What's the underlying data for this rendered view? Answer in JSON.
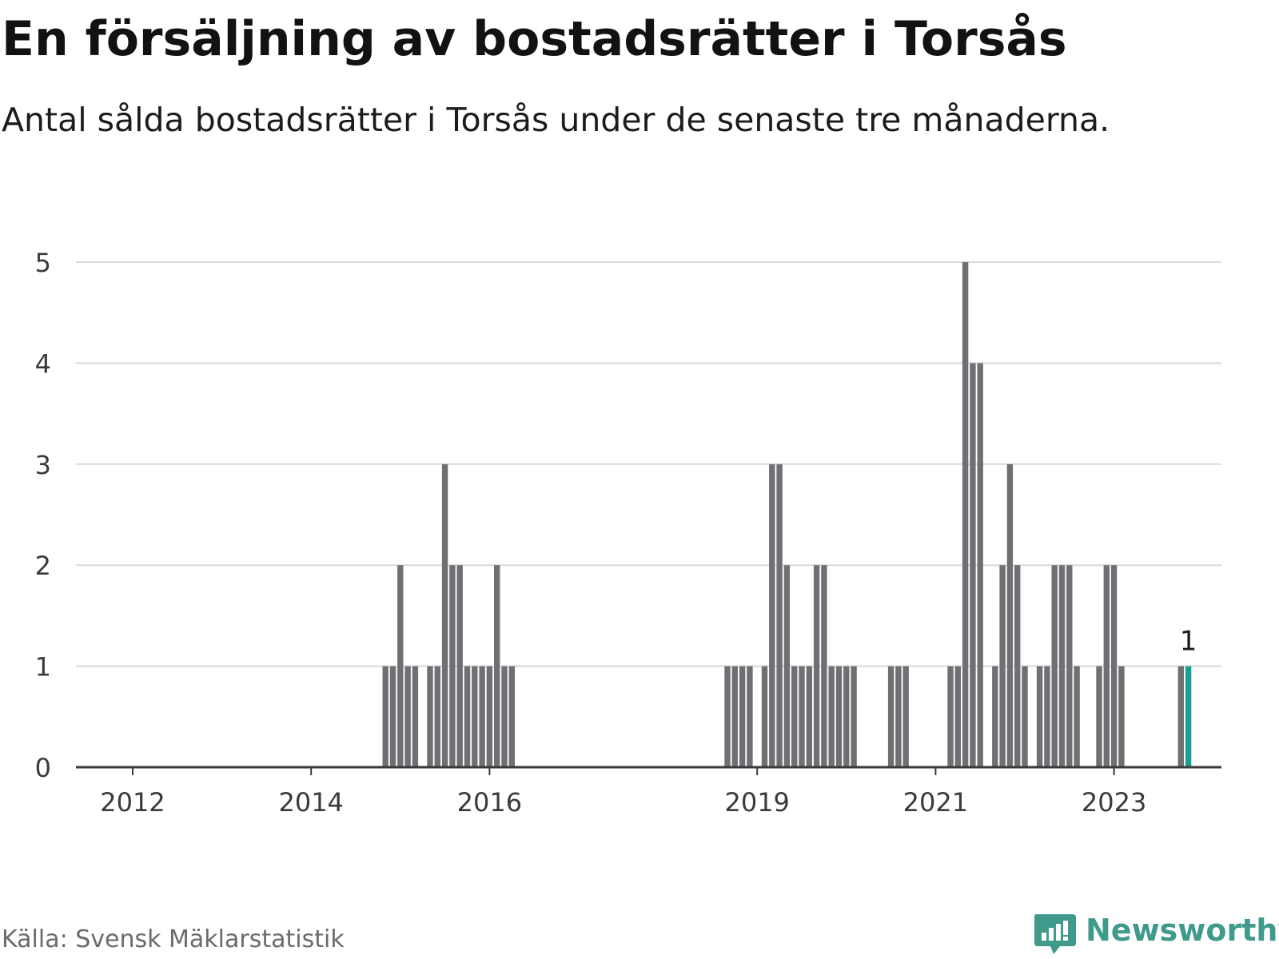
{
  "header": {
    "title": "En försäljning av bostadsrätter i Torsås",
    "subtitle": "Antal sålda bostadsrätter i Torsås under de senaste tre månaderna."
  },
  "footer": {
    "source": "Källa: Svensk Mäklarstatistik",
    "brand": "Newsworthy"
  },
  "colors": {
    "bar": "#707074",
    "highlight": "#16a091",
    "grid": "#d9d9d9",
    "axis": "#3a3a3a",
    "brand": "#3f9a8c"
  },
  "chart_data": {
    "type": "bar",
    "title": "En försäljning av bostadsrätter i Torsås",
    "ylim": [
      0,
      5
    ],
    "yticks": [
      0,
      1,
      2,
      3,
      4,
      5
    ],
    "xticks": [
      {
        "label": "2012",
        "index": 0
      },
      {
        "label": "2014",
        "index": 24
      },
      {
        "label": "2016",
        "index": 48
      },
      {
        "label": "2019",
        "index": 84
      },
      {
        "label": "2021",
        "index": 108
      },
      {
        "label": "2023",
        "index": 132
      }
    ],
    "month_count": 143,
    "highlight_index": 142,
    "highlight_label": "1",
    "values": [
      0,
      0,
      0,
      0,
      0,
      0,
      0,
      0,
      0,
      0,
      0,
      0,
      0,
      0,
      0,
      0,
      0,
      0,
      0,
      0,
      0,
      0,
      0,
      0,
      0,
      0,
      0,
      0,
      0,
      0,
      0,
      0,
      0,
      0,
      1,
      1,
      2,
      1,
      1,
      0,
      1,
      1,
      3,
      2,
      2,
      1,
      1,
      1,
      1,
      2,
      1,
      1,
      0,
      0,
      0,
      0,
      0,
      0,
      0,
      0,
      0,
      0,
      0,
      0,
      0,
      0,
      0,
      0,
      0,
      0,
      0,
      0,
      0,
      0,
      0,
      0,
      0,
      0,
      0,
      0,
      1,
      1,
      1,
      1,
      0,
      1,
      3,
      3,
      2,
      1,
      1,
      1,
      2,
      2,
      1,
      1,
      1,
      1,
      0,
      0,
      0,
      0,
      1,
      1,
      1,
      0,
      0,
      0,
      0,
      0,
      1,
      1,
      5,
      4,
      4,
      0,
      1,
      2,
      3,
      2,
      1,
      0,
      1,
      1,
      2,
      2,
      2,
      1,
      0,
      0,
      1,
      2,
      2,
      1,
      0,
      0,
      0,
      0,
      0,
      0,
      0,
      1,
      1
    ]
  }
}
